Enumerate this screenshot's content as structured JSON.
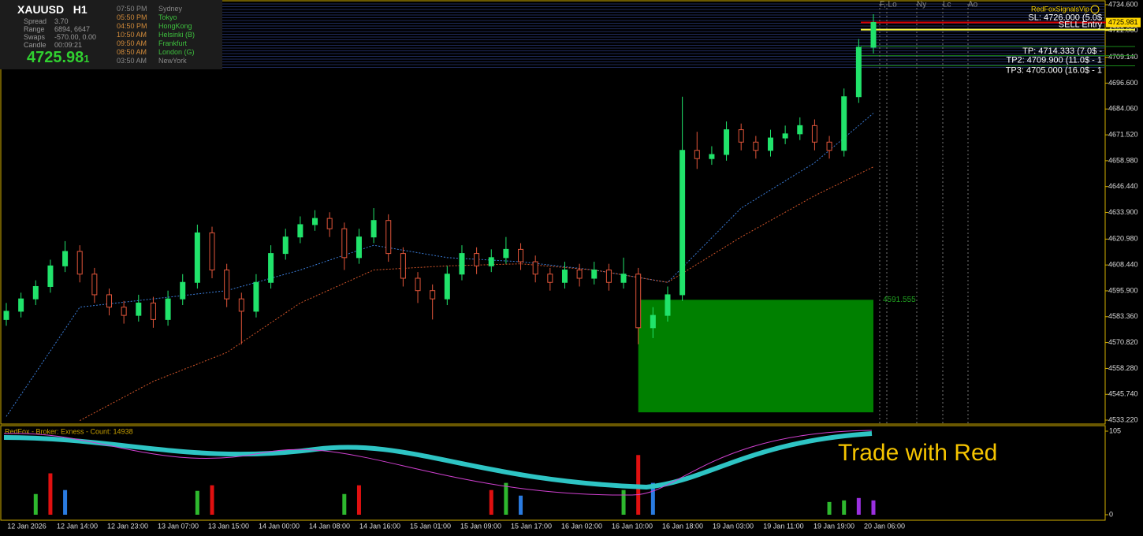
{
  "symbol": "XAUUSD",
  "timeframe": "H1",
  "info": {
    "rows": [
      [
        "Spread",
        "3.70"
      ],
      [
        "Range",
        "6894, 6647"
      ],
      [
        "Swaps",
        "-570.00, 0.00"
      ],
      [
        "Candle",
        "00:09:21"
      ]
    ],
    "price_main": "4725.98",
    "price_last_digit": "1"
  },
  "sessions": [
    {
      "time": "07:50 PM",
      "city": "Sydney",
      "active": false
    },
    {
      "time": "05:50 PM",
      "city": "Tokyo",
      "active": true
    },
    {
      "time": "04:50 PM",
      "city": "HongKong",
      "active": true
    },
    {
      "time": "10:50 AM",
      "city": "Helsinki  (B)",
      "active": true
    },
    {
      "time": "09:50 AM",
      "city": "Frankfurt",
      "active": true
    },
    {
      "time": "08:50 AM",
      "city": "London  (G)",
      "active": true
    },
    {
      "time": "03:50 AM",
      "city": "NewYork",
      "active": false
    }
  ],
  "brand": "RedFoxSignalsVip",
  "session_markers": [
    "F, Lo",
    "Ny",
    "Lc",
    "Ao"
  ],
  "chart_data": {
    "type": "candlestick",
    "ylim": [
      4533.22,
      4734.6
    ],
    "yticks": [
      {
        "value": 4734.6,
        "label": "4734.600"
      },
      {
        "value": 4722.06,
        "label": "4722.060"
      },
      {
        "value": 4709.14,
        "label": "4709.140"
      },
      {
        "value": 4696.6,
        "label": "4696.600"
      },
      {
        "value": 4684.06,
        "label": "4684.060"
      },
      {
        "value": 4671.52,
        "label": "4671.520"
      },
      {
        "value": 4658.98,
        "label": "4658.980"
      },
      {
        "value": 4646.44,
        "label": "4646.440"
      },
      {
        "value": 4633.9,
        "label": "4633.900"
      },
      {
        "value": 4620.98,
        "label": "4620.980"
      },
      {
        "value": 4608.44,
        "label": "4608.440"
      },
      {
        "value": 4595.9,
        "label": "4595.900"
      },
      {
        "value": 4583.36,
        "label": "4583.360"
      },
      {
        "value": 4570.82,
        "label": "4570.820"
      },
      {
        "value": 4558.28,
        "label": "4558.280"
      },
      {
        "value": 4545.74,
        "label": "4545.740"
      },
      {
        "value": 4533.22,
        "label": "4533.220"
      }
    ],
    "candles": [
      [
        4582,
        4590,
        4579,
        4586
      ],
      [
        4586,
        4595,
        4583,
        4592
      ],
      [
        4592,
        4601,
        4589,
        4598
      ],
      [
        4598,
        4611,
        4595,
        4608
      ],
      [
        4608,
        4620,
        4605,
        4615
      ],
      [
        4615,
        4618,
        4600,
        4604
      ],
      [
        4604,
        4607,
        4590,
        4594
      ],
      [
        4594,
        4597,
        4584,
        4588
      ],
      [
        4588,
        4591,
        4580,
        4584
      ],
      [
        4584,
        4594,
        4581,
        4590
      ],
      [
        4590,
        4593,
        4578,
        4582
      ],
      [
        4582,
        4596,
        4579,
        4592
      ],
      [
        4592,
        4604,
        4589,
        4600
      ],
      [
        4600,
        4628,
        4597,
        4624
      ],
      [
        4624,
        4627,
        4602,
        4606
      ],
      [
        4606,
        4609,
        4588,
        4592
      ],
      [
        4592,
        4595,
        4570,
        4586
      ],
      [
        4586,
        4604,
        4583,
        4600
      ],
      [
        4600,
        4618,
        4597,
        4614
      ],
      [
        4614,
        4626,
        4611,
        4622
      ],
      [
        4622,
        4632,
        4619,
        4628
      ],
      [
        4628,
        4635,
        4625,
        4631
      ],
      [
        4631,
        4634,
        4622,
        4626
      ],
      [
        4626,
        4629,
        4606,
        4612
      ],
      [
        4612,
        4626,
        4609,
        4622
      ],
      [
        4622,
        4636,
        4619,
        4630
      ],
      [
        4630,
        4633,
        4610,
        4614
      ],
      [
        4614,
        4617,
        4598,
        4602
      ],
      [
        4602,
        4605,
        4590,
        4596
      ],
      [
        4596,
        4599,
        4582,
        4592
      ],
      [
        4592,
        4608,
        4589,
        4604
      ],
      [
        4604,
        4618,
        4601,
        4614
      ],
      [
        4614,
        4617,
        4604,
        4608
      ],
      [
        4608,
        4616,
        4605,
        4612
      ],
      [
        4612,
        4622,
        4609,
        4616
      ],
      [
        4616,
        4619,
        4606,
        4610
      ],
      [
        4610,
        4613,
        4600,
        4604
      ],
      [
        4604,
        4607,
        4596,
        4600
      ],
      [
        4600,
        4610,
        4597,
        4606
      ],
      [
        4606,
        4609,
        4598,
        4602
      ],
      [
        4602,
        4610,
        4599,
        4606
      ],
      [
        4606,
        4609,
        4596,
        4600
      ],
      [
        4600,
        4612,
        4597,
        4604
      ],
      [
        4604,
        4607,
        4570,
        4578
      ],
      [
        4578,
        4588,
        4573,
        4584
      ],
      [
        4584,
        4598,
        4581,
        4594
      ],
      [
        4594,
        4690,
        4591,
        4664
      ],
      [
        4664,
        4673,
        4655,
        4660
      ],
      [
        4660,
        4666,
        4657,
        4662
      ],
      [
        4662,
        4678,
        4659,
        4674
      ],
      [
        4674,
        4677,
        4664,
        4668
      ],
      [
        4668,
        4671,
        4660,
        4664
      ],
      [
        4664,
        4674,
        4661,
        4670
      ],
      [
        4670,
        4676,
        4667,
        4672
      ],
      [
        4672,
        4680,
        4669,
        4676
      ],
      [
        4676,
        4679,
        4664,
        4668
      ],
      [
        4668,
        4671,
        4660,
        4664
      ],
      [
        4664,
        4694,
        4661,
        4690
      ],
      [
        4690,
        4718,
        4687,
        4714
      ],
      [
        4714,
        4730,
        4711,
        4726
      ]
    ],
    "x_labels": [
      "12 Jan 2026",
      "12 Jan 14:00",
      "12 Jan 23:00",
      "13 Jan 07:00",
      "13 Jan 15:00",
      "14 Jan 00:00",
      "14 Jan 08:00",
      "14 Jan 16:00",
      "15 Jan 01:00",
      "15 Jan 09:00",
      "15 Jan 17:00",
      "16 Jan 02:00",
      "16 Jan 10:00",
      "16 Jan 18:00",
      "19 Jan 03:00",
      "19 Jan 11:00",
      "19 Jan 19:00",
      "20 Jan 06:00"
    ],
    "ma_fast": {
      "color": "#3a7bd5",
      "index": [
        0,
        5,
        10,
        15,
        20,
        25,
        30,
        35,
        40,
        45,
        50,
        55,
        59
      ],
      "values": [
        4535,
        4588,
        4592,
        4596,
        4606,
        4618,
        4612,
        4610,
        4606,
        4600,
        4636,
        4658,
        4682
      ]
    },
    "ma_slow": {
      "color": "#d2552a",
      "index": [
        5,
        10,
        15,
        20,
        25,
        30,
        35,
        40,
        45,
        50,
        55,
        59
      ],
      "values": [
        4533,
        4552,
        4566,
        4590,
        4606,
        4608,
        4609,
        4606,
        4600,
        4622,
        4642,
        4656
      ]
    },
    "levels": [
      {
        "name": "SL: 4726.000 (5.0$",
        "value": 4726,
        "color": "#d40000"
      },
      {
        "name": "SELL Entry",
        "value": 4722.5,
        "color": "#ffff40"
      },
      {
        "name": "TP: 4714.333 (7.0$ -",
        "value": 4714.333,
        "color": "#1a8a1a"
      },
      {
        "name": "TP2: 4709.900 (11.0$ - 1",
        "value": 4709.9,
        "color": "#1a8a1a"
      },
      {
        "name": "TP3: 4705.000 (16.0$ - 1",
        "value": 4705,
        "color": "#1a8a1a"
      }
    ],
    "current_price": 4725.981,
    "zone": {
      "top": 4591.555,
      "bottom": 4537,
      "color": "#008000",
      "start": 43,
      "end": 59
    }
  },
  "indicator": {
    "title": "RedFox - Broker: Exness - Count: 14938",
    "caption": "Trade with Red",
    "ylim": [
      0,
      105
    ],
    "yticks": [
      105,
      0
    ],
    "bars": [
      {
        "index": 2,
        "value": 26,
        "color": "#2eb82e"
      },
      {
        "index": 3,
        "value": 52,
        "color": "#e01010"
      },
      {
        "index": 4,
        "value": 31,
        "color": "#2a7be0"
      },
      {
        "index": 13,
        "value": 30,
        "color": "#2eb82e"
      },
      {
        "index": 14,
        "value": 37,
        "color": "#e01010"
      },
      {
        "index": 23,
        "value": 26,
        "color": "#2eb82e"
      },
      {
        "index": 24,
        "value": 37,
        "color": "#e01010"
      },
      {
        "index": 33,
        "value": 31,
        "color": "#e01010"
      },
      {
        "index": 34,
        "value": 40,
        "color": "#2eb82e"
      },
      {
        "index": 35,
        "value": 24,
        "color": "#2a7be0"
      },
      {
        "index": 42,
        "value": 31,
        "color": "#2eb82e"
      },
      {
        "index": 43,
        "value": 75,
        "color": "#e01010"
      },
      {
        "index": 44,
        "value": 40,
        "color": "#2a7be0"
      },
      {
        "index": 56,
        "value": 16,
        "color": "#2eb82e"
      },
      {
        "index": 57,
        "value": 18,
        "color": "#2eb82e"
      },
      {
        "index": 58,
        "value": 21,
        "color": "#9b30e0"
      },
      {
        "index": 59,
        "value": 18,
        "color": "#9b30e0"
      }
    ]
  }
}
